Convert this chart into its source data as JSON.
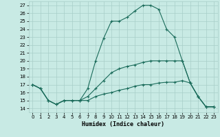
{
  "xlabel": "Humidex (Indice chaleur)",
  "background_color": "#c8eae4",
  "grid_color": "#a8cec8",
  "line_color": "#1a6b5a",
  "x_ticks": [
    0,
    1,
    2,
    3,
    4,
    5,
    6,
    7,
    8,
    9,
    10,
    11,
    12,
    13,
    14,
    15,
    16,
    17,
    18,
    19,
    20,
    21,
    22,
    23
  ],
  "y_ticks": [
    14,
    15,
    16,
    17,
    18,
    19,
    20,
    21,
    22,
    23,
    24,
    25,
    26,
    27
  ],
  "xlim": [
    -0.5,
    23.5
  ],
  "ylim": [
    13.5,
    27.5
  ],
  "line1_x": [
    0,
    1,
    2,
    3,
    4,
    5,
    6,
    7,
    8,
    9,
    10,
    11,
    12,
    13,
    14,
    15,
    16,
    17,
    18,
    19,
    20,
    21,
    22,
    23
  ],
  "line1_y": [
    17,
    16.5,
    15.0,
    14.5,
    15.0,
    15.0,
    15.0,
    16.5,
    20.0,
    22.8,
    25.0,
    25.0,
    25.5,
    26.3,
    27.0,
    27.0,
    26.5,
    24.0,
    23.0,
    20.0,
    17.2,
    15.5,
    14.2,
    14.2
  ],
  "line2_x": [
    0,
    1,
    2,
    3,
    4,
    5,
    6,
    7,
    8,
    9,
    10,
    11,
    12,
    13,
    14,
    15,
    16,
    17,
    18,
    19,
    20,
    21,
    22,
    23
  ],
  "line2_y": [
    17,
    16.5,
    15.0,
    14.5,
    15.0,
    15.0,
    15.0,
    15.5,
    16.5,
    17.5,
    18.5,
    19.0,
    19.3,
    19.5,
    19.8,
    20.0,
    20.0,
    20.0,
    20.0,
    20.0,
    17.2,
    15.5,
    14.2,
    14.2
  ],
  "line3_x": [
    0,
    1,
    2,
    3,
    4,
    5,
    6,
    7,
    8,
    9,
    10,
    11,
    12,
    13,
    14,
    15,
    16,
    17,
    18,
    19,
    20,
    21,
    22,
    23
  ],
  "line3_y": [
    17,
    16.5,
    15.0,
    14.5,
    15.0,
    15.0,
    15.0,
    15.0,
    15.5,
    15.8,
    16.0,
    16.3,
    16.5,
    16.8,
    17.0,
    17.0,
    17.2,
    17.3,
    17.3,
    17.5,
    17.2,
    15.5,
    14.2,
    14.2
  ]
}
